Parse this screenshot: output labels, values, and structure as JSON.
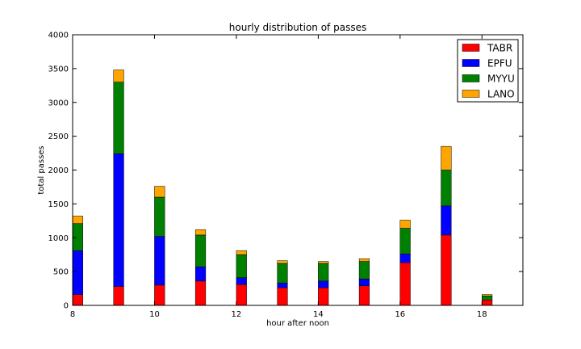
{
  "chart_data": {
    "type": "bar",
    "stacked": true,
    "title": "hourly distribution of passes",
    "xlabel": "hour after noon",
    "ylabel": "total passes",
    "xlim": [
      8,
      19
    ],
    "ylim": [
      0,
      4000
    ],
    "xticks": [
      8,
      10,
      12,
      14,
      16,
      18
    ],
    "yticks": [
      0,
      500,
      1000,
      1500,
      2000,
      2500,
      3000,
      3500,
      4000
    ],
    "bar_width": 0.25,
    "grid": false,
    "legend_position": "top-right",
    "x": [
      8,
      9,
      10,
      11,
      12,
      13,
      14,
      15,
      16,
      17,
      18
    ],
    "series": [
      {
        "name": "TABR",
        "color": "#ff0000",
        "values": [
          160,
          280,
          300,
          360,
          310,
          260,
          260,
          290,
          630,
          1040,
          80
        ]
      },
      {
        "name": "EPFU",
        "color": "#0000ff",
        "values": [
          650,
          1960,
          720,
          210,
          100,
          70,
          100,
          100,
          130,
          430,
          0
        ]
      },
      {
        "name": "MYYU",
        "color": "#008000",
        "values": [
          400,
          1060,
          580,
          470,
          340,
          290,
          260,
          260,
          380,
          530,
          60
        ]
      },
      {
        "name": "LANO",
        "color": "#ffa500",
        "values": [
          110,
          180,
          160,
          80,
          60,
          40,
          30,
          40,
          120,
          350,
          20
        ]
      }
    ]
  }
}
